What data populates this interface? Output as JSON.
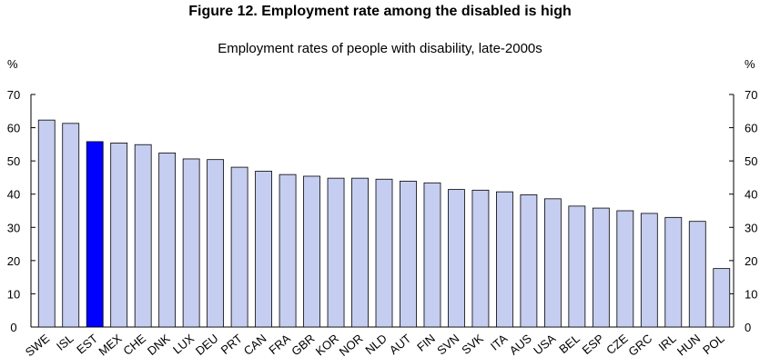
{
  "chart_data": {
    "type": "bar",
    "title": "Figure 12. Employment rate among the disabled is high",
    "subtitle": "Employment rates of people with disability, late-2000s",
    "ylabel_left": "%",
    "ylabel_right": "%",
    "ylim": [
      0,
      70
    ],
    "yticks": [
      0,
      10,
      20,
      30,
      40,
      50,
      60,
      70
    ],
    "grid": false,
    "categories": [
      "SWE",
      "ISL",
      "EST",
      "MEX",
      "CHE",
      "DNK",
      "LUX",
      "DEU",
      "PRT",
      "CAN",
      "FRA",
      "GBR",
      "KOR",
      "NOR",
      "NLD",
      "AUT",
      "FIN",
      "SVN",
      "SVK",
      "ITA",
      "AUS",
      "USA",
      "BEL",
      "ESP",
      "CZE",
      "GRC",
      "IRL",
      "HUN",
      "POL"
    ],
    "values": [
      62.3,
      61.3,
      55.8,
      55.4,
      54.9,
      52.4,
      50.6,
      50.4,
      48.1,
      46.9,
      45.9,
      45.4,
      44.8,
      44.8,
      44.5,
      43.9,
      43.4,
      41.4,
      41.2,
      40.7,
      39.8,
      38.6,
      36.4,
      35.8,
      35.0,
      34.2,
      33.0,
      31.8,
      17.6
    ],
    "highlight": "EST",
    "colors": {
      "bar": "#c5cdf0",
      "highlight": "#0000ff",
      "bar_stroke": "#000000"
    }
  }
}
